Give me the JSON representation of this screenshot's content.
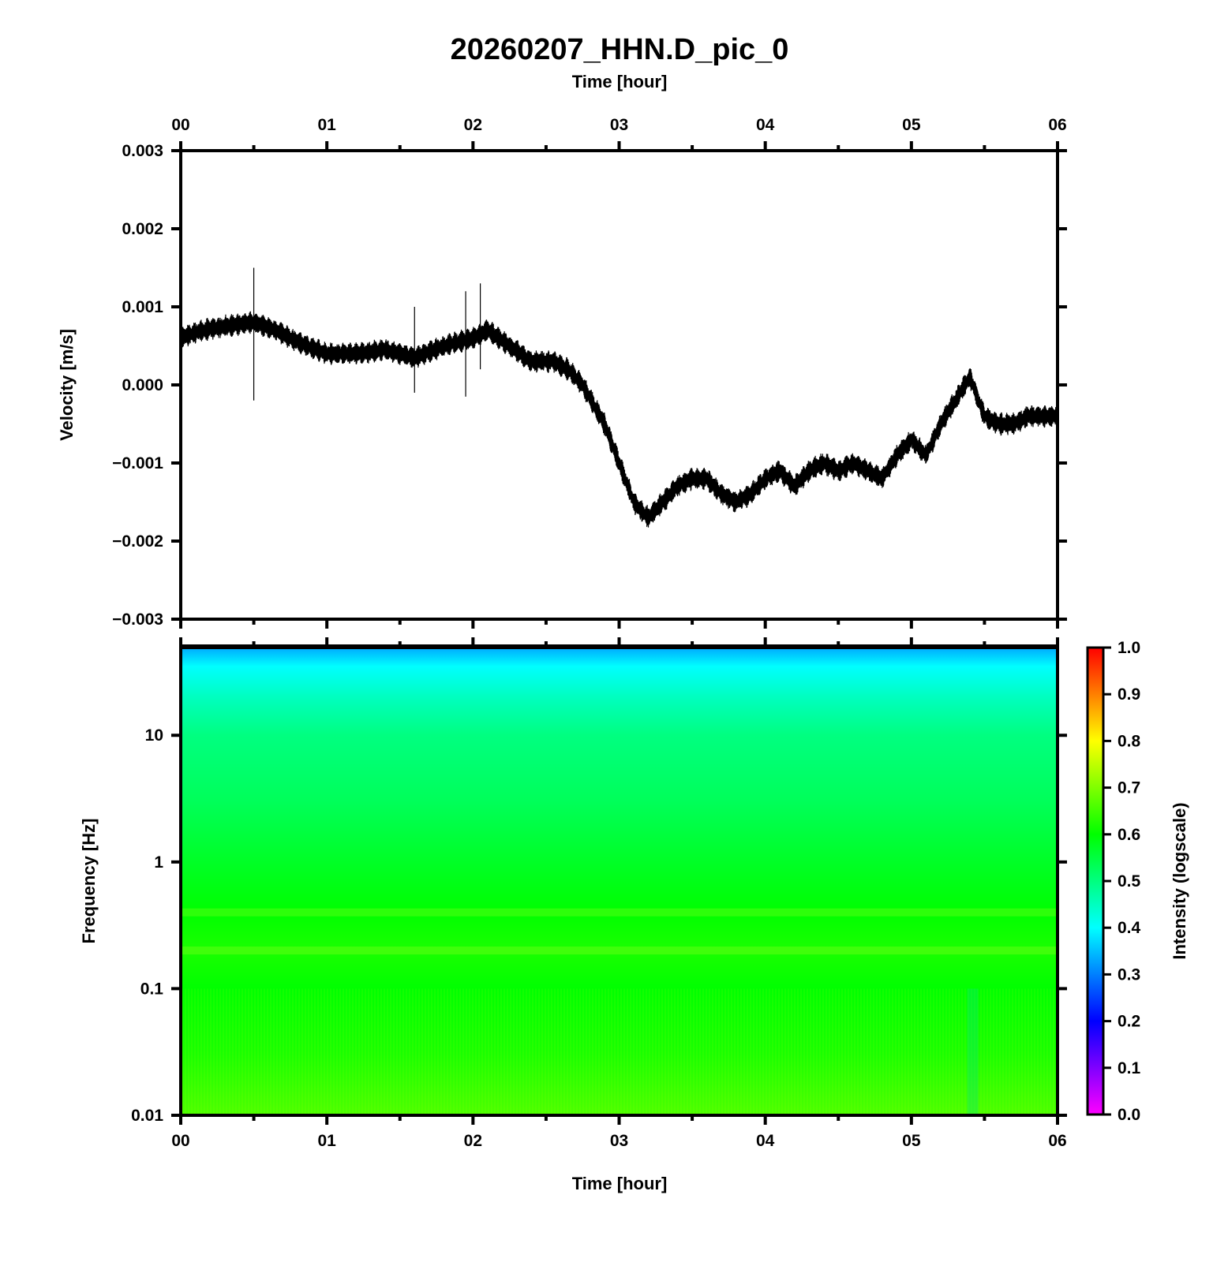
{
  "chart_data": [
    {
      "type": "line",
      "title": "20260207_HHN.D_pic_0",
      "xlabel_top": "Time [hour]",
      "ylabel": "Velocity [m/s]",
      "xlim": [
        0,
        6
      ],
      "ylim": [
        -0.003,
        0.003
      ],
      "x_ticks": [
        "00",
        "01",
        "02",
        "03",
        "04",
        "05",
        "06"
      ],
      "y_ticks": [
        "0.003",
        "0.002",
        "0.001",
        "0.000",
        "−0.001",
        "−0.002",
        "−0.003"
      ],
      "y_tick_values": [
        0.003,
        0.002,
        0.001,
        0.0,
        -0.001,
        -0.002,
        -0.003
      ],
      "series": [
        {
          "name": "velocity",
          "x": [
            0.0,
            0.15,
            0.3,
            0.5,
            0.65,
            0.8,
            1.0,
            1.2,
            1.4,
            1.6,
            1.8,
            2.0,
            2.1,
            2.25,
            2.4,
            2.55,
            2.65,
            2.75,
            2.9,
            3.0,
            3.1,
            3.2,
            3.3,
            3.4,
            3.5,
            3.6,
            3.7,
            3.8,
            3.9,
            4.0,
            4.1,
            4.2,
            4.3,
            4.4,
            4.5,
            4.6,
            4.7,
            4.8,
            4.9,
            5.0,
            5.1,
            5.2,
            5.3,
            5.4,
            5.5,
            5.6,
            5.7,
            5.8,
            5.9,
            6.0
          ],
          "y": [
            0.0006,
            0.0007,
            0.00075,
            0.0008,
            0.0007,
            0.00055,
            0.0004,
            0.0004,
            0.00045,
            0.00035,
            0.0005,
            0.0006,
            0.0007,
            0.0005,
            0.0003,
            0.0003,
            0.0002,
            0.0,
            -0.0005,
            -0.001,
            -0.0015,
            -0.0017,
            -0.0015,
            -0.0013,
            -0.0012,
            -0.0012,
            -0.0014,
            -0.0015,
            -0.0014,
            -0.0012,
            -0.0011,
            -0.0013,
            -0.0011,
            -0.001,
            -0.0011,
            -0.001,
            -0.0011,
            -0.0012,
            -0.0009,
            -0.0007,
            -0.0009,
            -0.0005,
            -0.0002,
            0.0001,
            -0.0004,
            -0.0005,
            -0.0005,
            -0.0004,
            -0.0004,
            -0.0004
          ],
          "noise_amplitude": 0.0001
        }
      ]
    },
    {
      "type": "heatmap",
      "xlabel": "Time [hour]",
      "ylabel": "Frequency [Hz]",
      "xlim": [
        0,
        6
      ],
      "y_scale": "log",
      "ylim": [
        0.01,
        50
      ],
      "x_ticks": [
        "00",
        "01",
        "02",
        "03",
        "04",
        "05",
        "06"
      ],
      "y_ticks": [
        "10",
        "1",
        "0.1",
        "0.01"
      ],
      "y_tick_values": [
        10,
        1,
        0.1,
        0.01
      ],
      "colorbar": {
        "label": "Intensity (logscale)",
        "range": [
          0.0,
          1.0
        ],
        "ticks": [
          "1.0",
          "0.9",
          "0.8",
          "0.7",
          "0.6",
          "0.5",
          "0.4",
          "0.3",
          "0.2",
          "0.1",
          "0.0"
        ],
        "tick_values": [
          1.0,
          0.9,
          0.8,
          0.7,
          0.6,
          0.5,
          0.4,
          0.3,
          0.2,
          0.1,
          0.0
        ],
        "colors": [
          "#ff00ff",
          "#0000ff",
          "#00ffff",
          "#00ff00",
          "#ffff00",
          "#ff0000"
        ]
      },
      "intensity_profile": {
        "frequency": [
          50,
          35,
          20,
          10,
          3,
          1,
          0.4,
          0.2,
          0.1,
          0.03,
          0.01
        ],
        "intensity": [
          0.33,
          0.4,
          0.45,
          0.5,
          0.53,
          0.57,
          0.6,
          0.62,
          0.6,
          0.62,
          0.66
        ]
      }
    }
  ]
}
